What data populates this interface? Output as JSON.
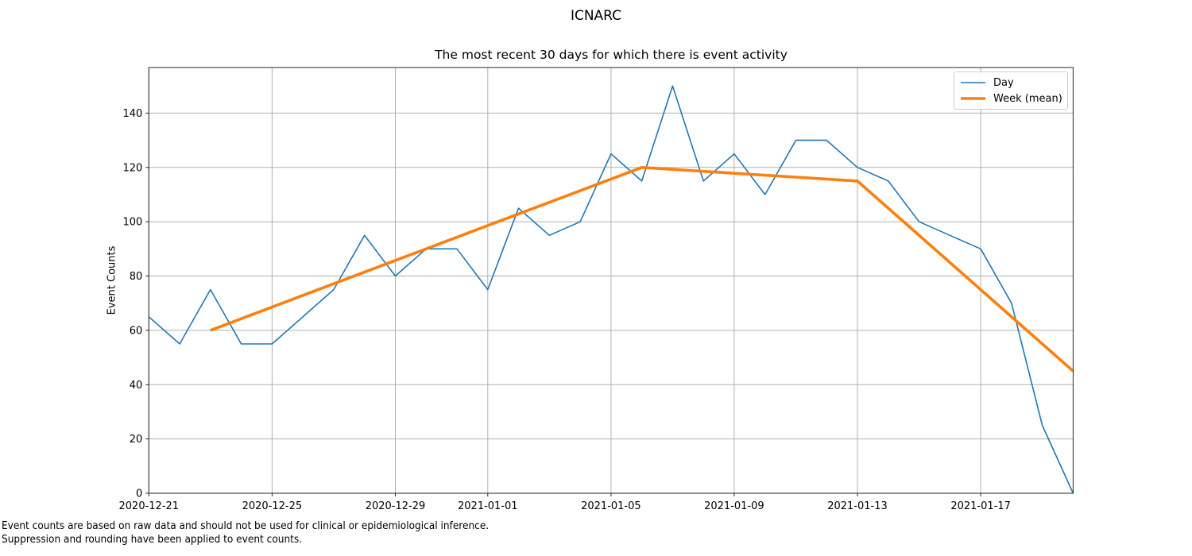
{
  "chart_data": {
    "type": "line",
    "title": "ICNARC",
    "subtitle": "The most recent 30 days for which there is event activity",
    "xlabel": "",
    "ylabel": "Event Counts",
    "xlim": [
      "2020-12-21",
      "2021-01-20"
    ],
    "ylim": [
      0,
      156.8
    ],
    "grid": true,
    "grid_color": "#b0b0b0",
    "axis_color": "#262626",
    "legend_position": "upper right",
    "x_ticks": [
      "2020-12-21",
      "2020-12-25",
      "2020-12-29",
      "2021-01-01",
      "2021-01-05",
      "2021-01-09",
      "2021-01-13",
      "2021-01-17"
    ],
    "y_ticks": [
      0,
      20,
      40,
      60,
      80,
      100,
      120,
      140
    ],
    "series": [
      {
        "name": "Day",
        "color": "#1f77b4",
        "line_width": 1.6,
        "dates": [
          "2020-12-21",
          "2020-12-22",
          "2020-12-23",
          "2020-12-24",
          "2020-12-25",
          "2020-12-26",
          "2020-12-27",
          "2020-12-28",
          "2020-12-29",
          "2020-12-30",
          "2020-12-31",
          "2021-01-01",
          "2021-01-02",
          "2021-01-03",
          "2021-01-04",
          "2021-01-05",
          "2021-01-06",
          "2021-01-07",
          "2021-01-08",
          "2021-01-09",
          "2021-01-10",
          "2021-01-11",
          "2021-01-12",
          "2021-01-13",
          "2021-01-14",
          "2021-01-15",
          "2021-01-16",
          "2021-01-17",
          "2021-01-18",
          "2021-01-19",
          "2021-01-20"
        ],
        "values": [
          65,
          55,
          75,
          55,
          55,
          65,
          75,
          95,
          80,
          90,
          90,
          75,
          105,
          95,
          100,
          125,
          115,
          150,
          115,
          125,
          110,
          130,
          130,
          120,
          115,
          100,
          95,
          90,
          70,
          25,
          0
        ]
      },
      {
        "name": "Week (mean)",
        "color": "#ff7f0e",
        "line_width": 3.6,
        "dates": [
          "2020-12-23",
          "2020-12-30",
          "2021-01-06",
          "2021-01-13",
          "2021-01-20"
        ],
        "values": [
          60,
          90,
          120,
          115,
          45
        ]
      }
    ],
    "footnotes": [
      "Event counts are based on raw data and should not be used for clinical or epidemiological inference.",
      "Suppression and rounding have been applied to event counts."
    ]
  }
}
